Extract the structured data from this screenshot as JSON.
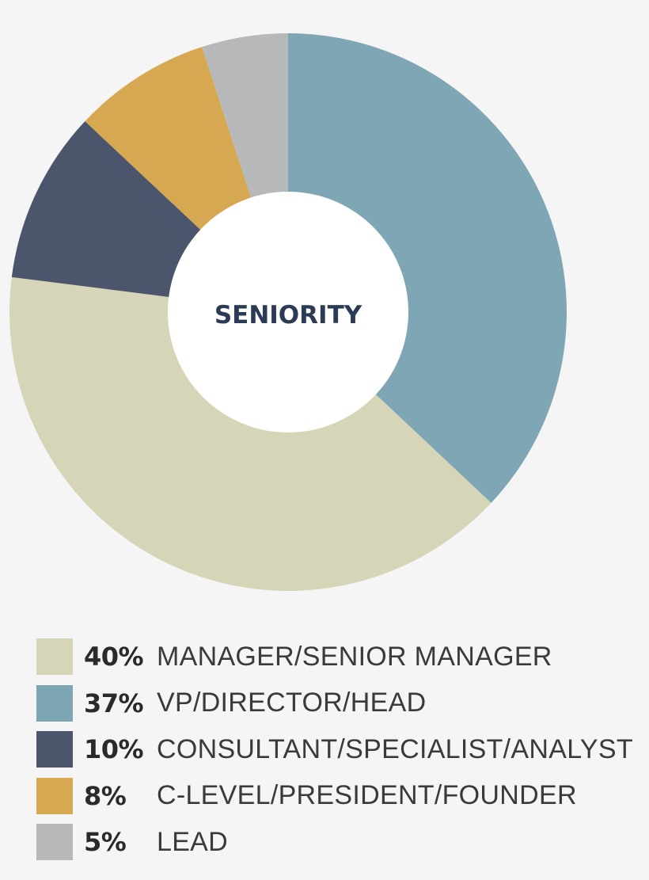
{
  "chart_data": {
    "type": "pie",
    "title": "SENIORITY",
    "slices": [
      {
        "value": 37,
        "percent_label": "37%",
        "label": "VP/DIRECTOR/HEAD",
        "color": "#7fa6b5"
      },
      {
        "value": 40,
        "percent_label": "40%",
        "label": "MANAGER/SENIOR MANAGER",
        "color": "#d7d5b8"
      },
      {
        "value": 10,
        "percent_label": "10%",
        "label": "CONSULTANT/SPECIALIST/ANALYST",
        "color": "#4b566d"
      },
      {
        "value": 8,
        "percent_label": "8%",
        "label": "C-LEVEL/PRESIDENT/FOUNDER",
        "color": "#d6a852"
      },
      {
        "value": 5,
        "percent_label": "5%",
        "label": "LEAD",
        "color": "#b7b8ba"
      }
    ],
    "legend": [
      {
        "percent_label": "40%",
        "label": "MANAGER/SENIOR MANAGER",
        "color": "#d7d5b8"
      },
      {
        "percent_label": "37%",
        "label": "VP/DIRECTOR/HEAD",
        "color": "#7fa6b5"
      },
      {
        "percent_label": "10%",
        "label": "CONSULTANT/SPECIALIST/ANALYST",
        "color": "#4b566d"
      },
      {
        "percent_label": "8%",
        "label": "C-LEVEL/PRESIDENT/FOUNDER",
        "color": "#d6a852"
      },
      {
        "percent_label": "5%",
        "label": "LEAD",
        "color": "#b7b8ba"
      }
    ],
    "legend_position": "bottom",
    "center_hole_color": "#ffffff",
    "background_color": "#f5f5f5"
  }
}
